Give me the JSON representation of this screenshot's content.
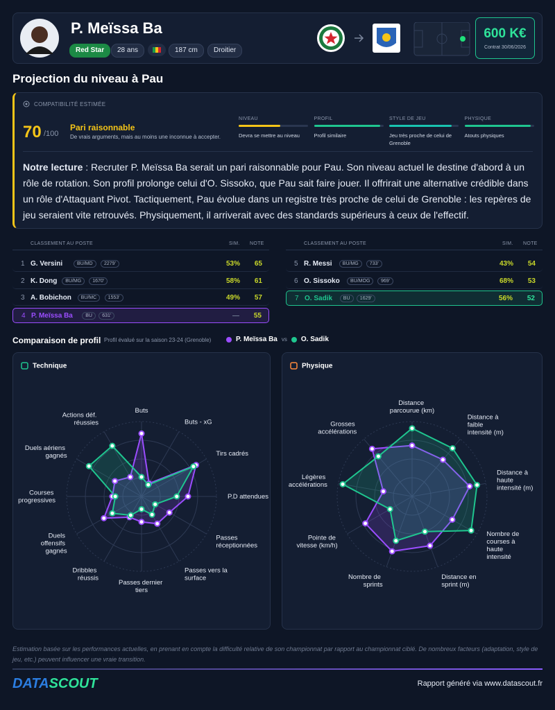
{
  "header": {
    "name": "P. Meïssa Ba",
    "club": "Red Star",
    "age": "28 ans",
    "height": "187 cm",
    "foot": "Droitier",
    "value": "600 K€",
    "contract": "Contrat 30/06/2026"
  },
  "projection": {
    "title": "Projection du niveau à Pau",
    "compat_label": "COMPATIBILITÉ ESTIMÉE",
    "score": 70,
    "score_max": "/100",
    "verdict": "Pari raisonnable",
    "verdict_text": "De vrais arguments, mais au moins une inconnue à accepter.",
    "criteria": [
      {
        "label": "NIVEAU",
        "value": 60,
        "color": "#f5c518",
        "text": "Devra se mettre au niveau"
      },
      {
        "label": "PROFIL",
        "value": 95,
        "color": "#1fc68f",
        "text": "Profil similaire"
      },
      {
        "label": "STYLE DE JEU",
        "value": 90,
        "color": "#19c3b0",
        "text": "Jeu très proche de celui de Grenoble"
      },
      {
        "label": "PHYSIQUE",
        "value": 95,
        "color": "#1fc68f",
        "text": "Atouts physiques"
      }
    ],
    "reading_label": "Notre lecture",
    "reading_text": ": Recruter P. Meïssa Ba serait un pari raisonnable pour Pau. Son niveau actuel le destine d'abord à un rôle de rotation. Son profil prolonge celui d'O. Sissoko, que Pau sait faire jouer. Il offrirait une alternative crédible dans un rôle d'Attaquant Pivot. Tactiquement, Pau évolue dans un registre très proche de celui de Grenoble : les repères de jeu seraient vite retrouvés. Physiquement, il arriverait avec des standards supérieurs à ceux de l'effectif."
  },
  "ranking": {
    "columns": [
      "CLASSEMENT AU POSTE",
      "SIM.",
      "NOTE"
    ],
    "left": [
      {
        "rank": 1,
        "name": "G. Versini",
        "pos": "BU/MD",
        "minutes": "2279'",
        "sim": "53%",
        "note": 65
      },
      {
        "rank": 2,
        "name": "K. Dong",
        "pos": "BU/MG",
        "minutes": "1670'",
        "sim": "58%",
        "note": 61
      },
      {
        "rank": 3,
        "name": "A. Bobichon",
        "pos": "BU/MC",
        "minutes": "1553'",
        "sim": "49%",
        "note": 57
      },
      {
        "rank": 4,
        "name": "P. Meïssa Ba",
        "pos": "BU",
        "minutes": "631'",
        "sim": "—",
        "note": 55,
        "highlight": "#9b4dff"
      }
    ],
    "right": [
      {
        "rank": 5,
        "name": "R. Messi",
        "pos": "BU/MG",
        "minutes": "733'",
        "sim": "43%",
        "note": 54
      },
      {
        "rank": 6,
        "name": "O. Sissoko",
        "pos": "BU/MOG",
        "minutes": "969'",
        "sim": "68%",
        "note": 53
      },
      {
        "rank": 7,
        "name": "O. Sadik",
        "pos": "BU",
        "minutes": "1629'",
        "sim": "56%",
        "note": 52,
        "highlight": "#1fc68f"
      }
    ]
  },
  "comparison": {
    "title": "Comparaison de profil",
    "subtitle": "Profil évalué sur la saison 23-24 (Grenoble)",
    "vs": "vs"
  },
  "chart_data": [
    {
      "type": "radar",
      "title": "Technique",
      "categories": [
        "Buts",
        "Buts - xG",
        "Tirs cadrés",
        "P.D attendues",
        "Passes réceptionnées",
        "Passes vers la surface",
        "Passes dernier tiers",
        "Dribbles réussis",
        "Duels offensifs gagnés",
        "Courses progressives",
        "Duels aériens gagnés",
        "Actions déf. réussies"
      ],
      "series": [
        {
          "name": "P. Meïssa Ba",
          "color": "#9b4dff",
          "values": [
            84,
            20,
            84,
            62,
            43,
            42,
            34,
            32,
            58,
            39,
            41,
            30
          ]
        },
        {
          "name": "O. Sadik",
          "color": "#1fc68f",
          "values": [
            26,
            18,
            80,
            47,
            21,
            28,
            17,
            29,
            45,
            35,
            81,
            78
          ]
        }
      ],
      "rlim": [
        0,
        100
      ],
      "rticks": [
        25,
        50,
        75,
        100
      ]
    },
    {
      "type": "radar",
      "title": "Physique",
      "categories": [
        "Distance parcourue (km)",
        "Distance à faible intensité (m)",
        "Distance à haute intensité (m)",
        "Nombre de courses à haute intensité",
        "Distance en sprint (m)",
        "Nombre de sprints",
        "Pointe de vitesse (km/h)",
        "Légères accélérations",
        "Grosses accélérations"
      ],
      "series": [
        {
          "name": "P. Meïssa Ba",
          "color": "#9b4dff",
          "values": [
            68,
            64,
            78,
            62,
            70,
            78,
            72,
            39,
            83
          ]
        },
        {
          "name": "O. Sadik",
          "color": "#1fc68f",
          "values": [
            91,
            84,
            88,
            91,
            50,
            63,
            34,
            94,
            70
          ]
        }
      ],
      "rlim": [
        0,
        100
      ],
      "rticks": [
        25,
        50,
        75,
        100
      ]
    }
  ],
  "footer": {
    "disclaimer": "Estimation basée sur les performances actuelles, en prenant en compte la difficulté relative de son championnat par rapport au championnat ciblé. De nombreux facteurs (adaptation, style de jeu, etc.) peuvent influencer une vraie transition.",
    "logo_left": "DATA",
    "logo_right": "SCOUT",
    "credit": "Rapport généré via www.datascout.fr"
  }
}
